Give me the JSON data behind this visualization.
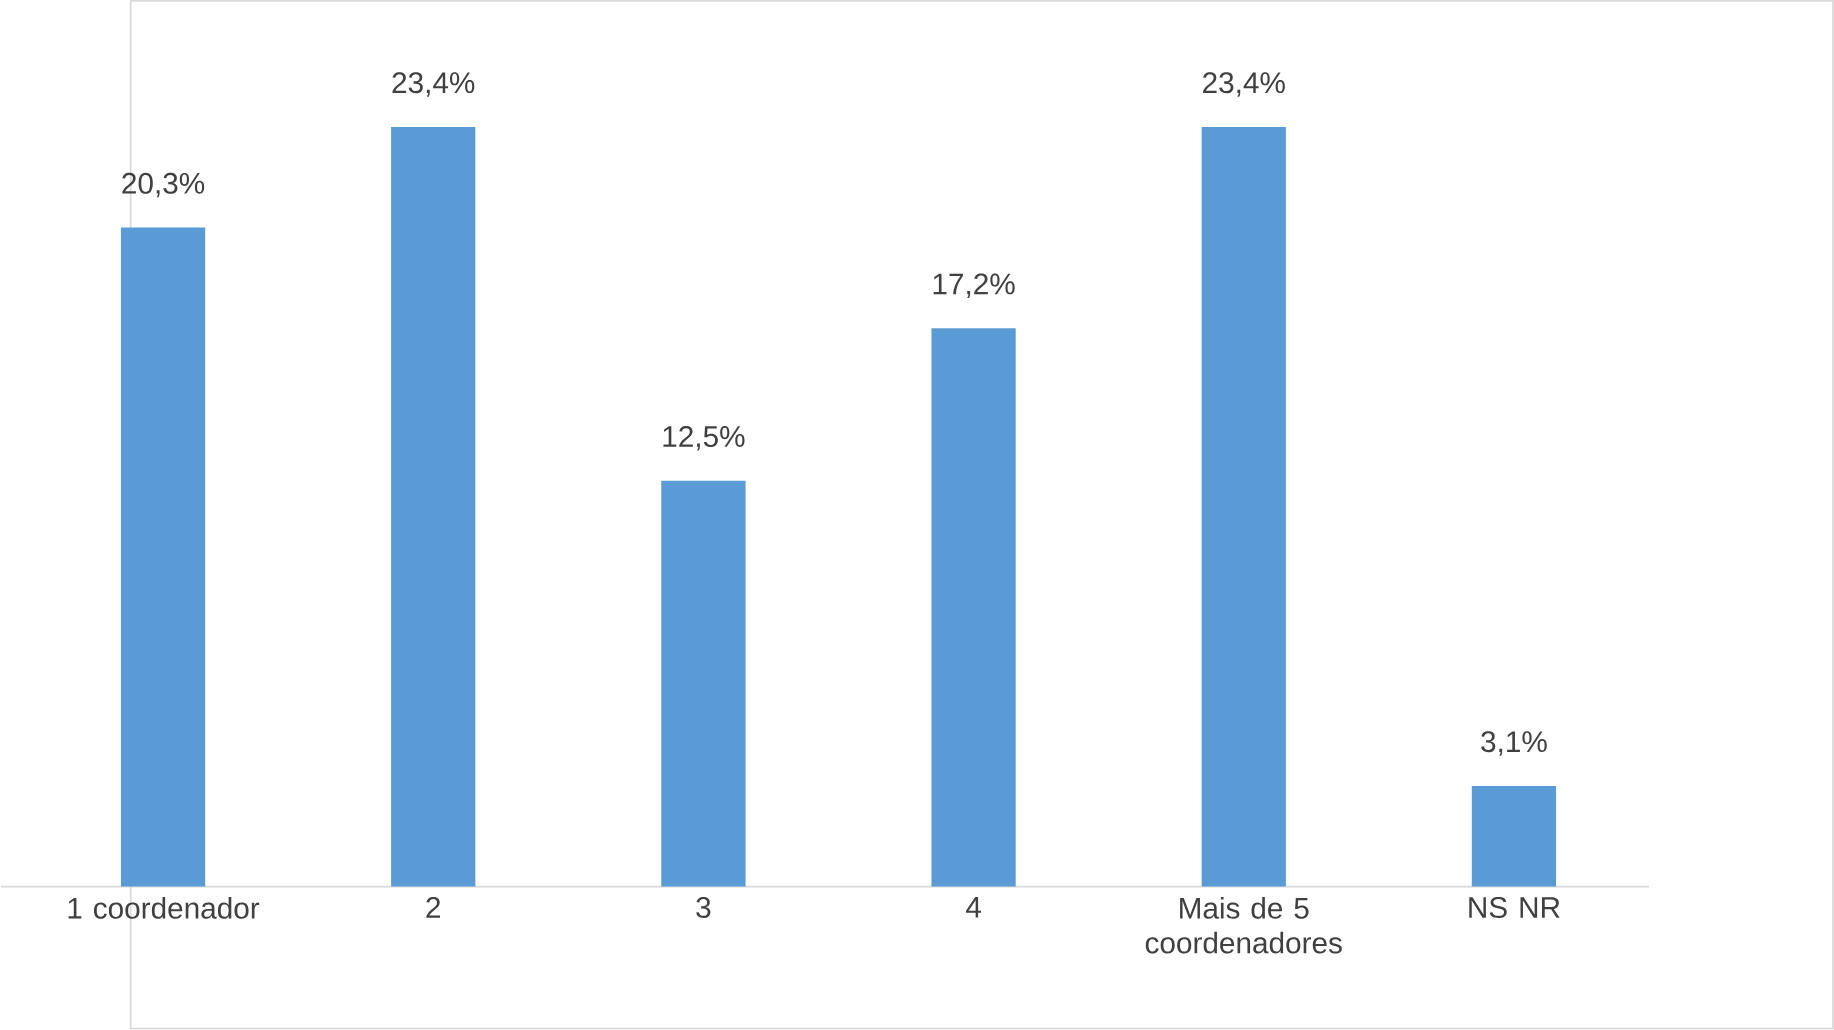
{
  "chart_data": {
    "type": "bar",
    "categories": [
      "1 coordenador",
      "2",
      "3",
      "4",
      "Mais de 5 coordenadores",
      "NS NR"
    ],
    "values": [
      20.3,
      23.4,
      12.5,
      17.2,
      23.4,
      3.1
    ],
    "value_labels": [
      "20,3%",
      "23,4%",
      "12,5%",
      "17,2%",
      "23,4%",
      "3,1%"
    ],
    "color": "#5b9bd5"
  }
}
